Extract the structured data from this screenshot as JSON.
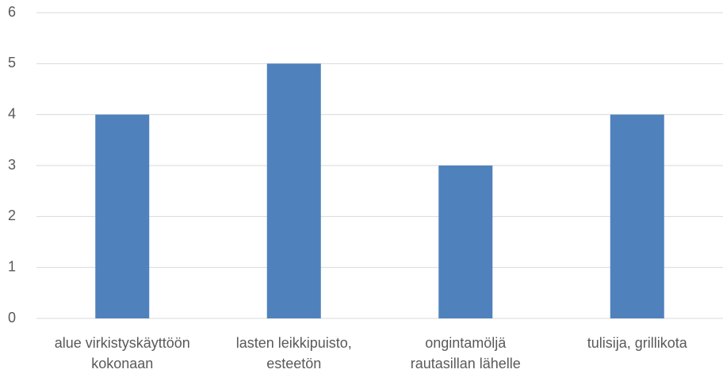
{
  "chart_data": {
    "type": "bar",
    "categories": [
      "alue virkistyskäyttöön\nkokonaan",
      "lasten leikkipuisto,\nesteetön",
      "ongintamöljä\nrautasillan lähelle",
      "tulisija, grillikota"
    ],
    "values": [
      4,
      5,
      3,
      4
    ],
    "color": "#4f81bd",
    "ylim": [
      0,
      6
    ],
    "yticks": [
      0,
      1,
      2,
      3,
      4,
      5,
      6
    ],
    "grid": true
  }
}
